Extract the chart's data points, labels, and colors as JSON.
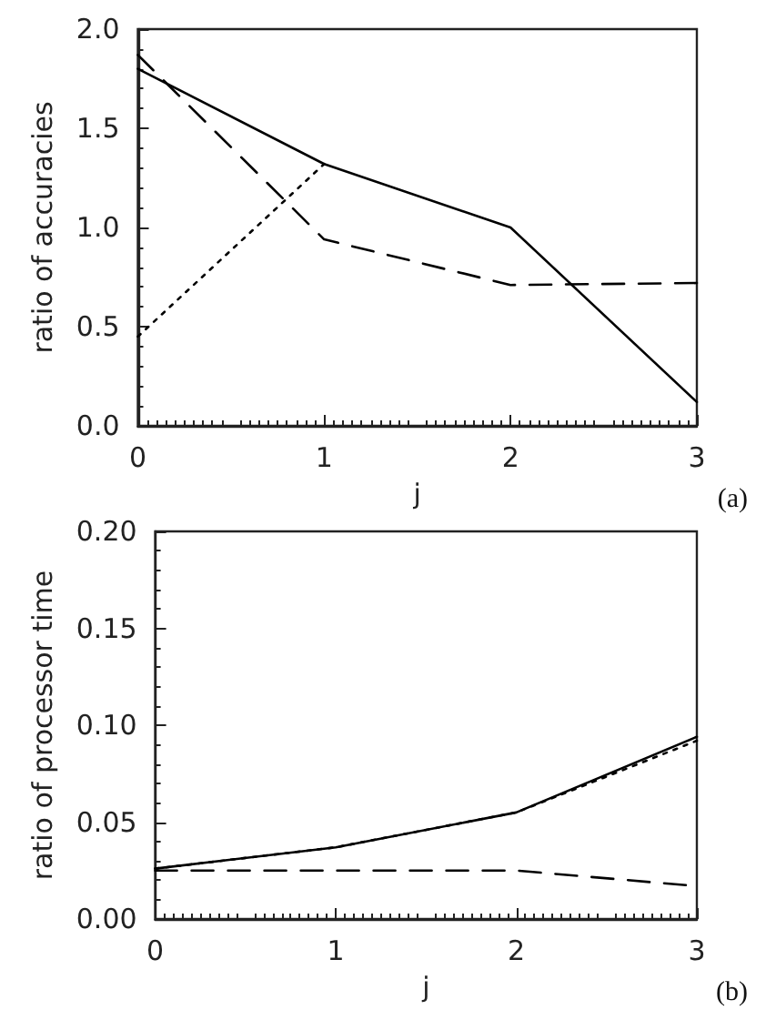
{
  "chart_data": [
    {
      "type": "line",
      "xlabel": "j",
      "ylabel": "ratio of accuracies",
      "x": [
        0,
        1,
        2,
        3
      ],
      "xlim": [
        0,
        3
      ],
      "xticks": [
        0,
        1,
        2,
        3
      ],
      "ylim": [
        0,
        2
      ],
      "yticks": [
        {
          "value": 0,
          "label": "0.0"
        },
        {
          "value": 0.5,
          "label": "0.5"
        },
        {
          "value": 1,
          "label": "1.0"
        },
        {
          "value": 1.5,
          "label": "1.5"
        },
        {
          "value": 2,
          "label": "2.0"
        }
      ],
      "grid": false,
      "marker": "none",
      "annotations": [
        "(a)"
      ],
      "series": [
        {
          "color": "#000000",
          "line_style": "solid",
          "values": [
            1.8,
            1.32,
            1.0,
            0.12
          ]
        },
        {
          "color": "#000000",
          "line_style": "dashed",
          "values": [
            1.87,
            0.94,
            0.71,
            0.72
          ]
        },
        {
          "color": "#000000",
          "line_style": "dotted",
          "values": [
            0.45,
            1.32,
            null,
            null
          ]
        }
      ]
    },
    {
      "type": "line",
      "xlabel": "j",
      "ylabel": "ratio of processor time",
      "x": [
        0,
        1,
        2,
        3
      ],
      "xlim": [
        0,
        3
      ],
      "xticks": [
        0,
        1,
        2,
        3
      ],
      "ylim": [
        0,
        0.2
      ],
      "yticks": [
        {
          "value": 0,
          "label": "0.00"
        },
        {
          "value": 0.05,
          "label": "0.05"
        },
        {
          "value": 0.1,
          "label": "0.10"
        },
        {
          "value": 0.15,
          "label": "0.15"
        },
        {
          "value": 0.2,
          "label": "0.20"
        }
      ],
      "grid": false,
      "marker": "none",
      "annotations": [
        "(b)"
      ],
      "series": [
        {
          "color": "#000000",
          "line_style": "solid",
          "values": [
            0.026,
            0.037,
            0.055,
            0.094
          ]
        },
        {
          "color": "#000000",
          "line_style": "dotted",
          "values": [
            0.026,
            0.037,
            0.055,
            0.092
          ]
        },
        {
          "color": "#000000",
          "line_style": "dashed",
          "values": [
            0.025,
            0.025,
            0.025,
            0.017
          ]
        }
      ]
    }
  ]
}
